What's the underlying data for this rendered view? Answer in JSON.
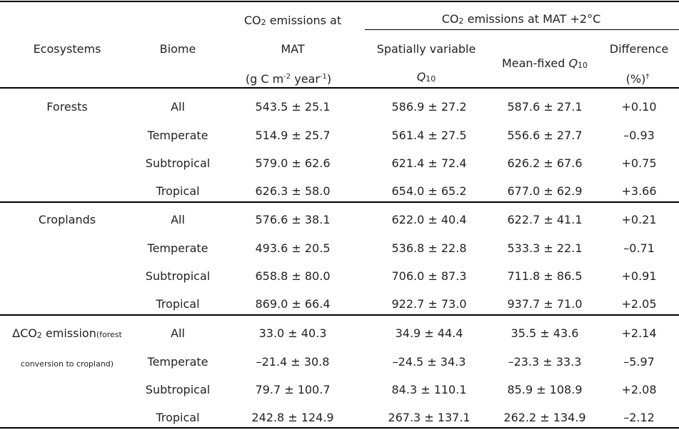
{
  "header": {
    "ecosystems": "Ecosystems",
    "biome": "Biome",
    "mat_line1_a": "CO",
    "mat_line1_sub": "2",
    "mat_line1_b": " emissions at",
    "mat_line2": "MAT",
    "mat_units_a": "(g C m",
    "mat_units_sup1": "-2",
    "mat_units_b": " year",
    "mat_units_sup2": "-1",
    "mat_units_c": ")",
    "group_a": "CO",
    "group_sub": "2",
    "group_b": " emissions at MAT +2°C",
    "spatial_line1": "Spatially variable",
    "spatial_q": "Q",
    "spatial_qsub": "10",
    "meanfixed_a": "Mean-fixed ",
    "meanfixed_q": "Q",
    "meanfixed_qsub": "10",
    "diff_line1": "Difference",
    "diff_line2": "(%)",
    "diff_sup": "†"
  },
  "groups": [
    {
      "name": "Forests",
      "rows": [
        {
          "biome": "All",
          "mat": "543.5 ± 25.1",
          "spatial": "586.9 ± 27.2",
          "meanfixed": "587.6 ± 27.1",
          "diff": "+0.10"
        },
        {
          "biome": "Temperate",
          "mat": "514.9 ± 25.7",
          "spatial": "561.4 ± 27.5",
          "meanfixed": "556.6 ± 27.7",
          "diff": "–0.93"
        },
        {
          "biome": "Subtropical",
          "mat": "579.0 ± 62.6",
          "spatial": "621.4 ± 72.4",
          "meanfixed": "626.2 ± 67.6",
          "diff": "+0.75"
        },
        {
          "biome": "Tropical",
          "mat": "626.3 ± 58.0",
          "spatial": "654.0 ± 65.2",
          "meanfixed": "677.0 ± 62.9",
          "diff": "+3.66"
        }
      ]
    },
    {
      "name": "Croplands",
      "rows": [
        {
          "biome": "All",
          "mat": "576.6 ± 38.1",
          "spatial": "622.0 ± 40.4",
          "meanfixed": "622.7 ± 41.1",
          "diff": "+0.21"
        },
        {
          "biome": "Temperate",
          "mat": "493.6 ± 20.5",
          "spatial": "536.8 ± 22.8",
          "meanfixed": "533.3 ± 22.1",
          "diff": "–0.71"
        },
        {
          "biome": "Subtropical",
          "mat": "658.8 ± 80.0",
          "spatial": "706.0 ± 87.3",
          "meanfixed": "711.8 ± 86.5",
          "diff": "+0.91"
        },
        {
          "biome": "Tropical",
          "mat": "869.0 ± 66.4",
          "spatial": "922.7 ± 73.0",
          "meanfixed": "937.7 ± 71.0",
          "diff": "+2.05"
        }
      ]
    },
    {
      "name_a": "ΔCO",
      "name_sub": "2",
      "name_b": " emission",
      "name_small1": "(forest",
      "name_small2": "conversion to cropland)",
      "rows": [
        {
          "biome": "All",
          "mat": "33.0 ± 40.3",
          "spatial": "34.9 ± 44.4",
          "meanfixed": "35.5 ± 43.6",
          "diff": "+2.14"
        },
        {
          "biome": "Temperate",
          "mat": "–21.4 ± 30.8",
          "spatial": "–24.5 ± 34.3",
          "meanfixed": "–23.3 ± 33.3",
          "diff": "–5.97"
        },
        {
          "biome": "Subtropical",
          "mat": "79.7 ± 100.7",
          "spatial": "84.3 ± 110.1",
          "meanfixed": "85.9 ± 108.9",
          "diff": "+2.08"
        },
        {
          "biome": "Tropical",
          "mat": "242.8 ± 124.9",
          "spatial": "267.3 ± 137.1",
          "meanfixed": "262.2 ± 134.9",
          "diff": "–2.12"
        }
      ]
    }
  ]
}
